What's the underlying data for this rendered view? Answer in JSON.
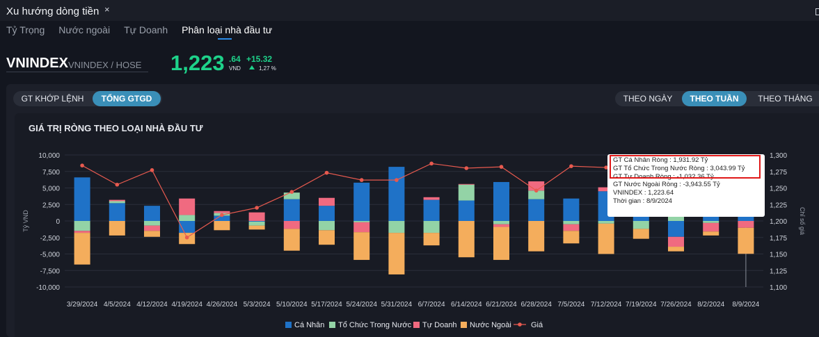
{
  "window": {
    "title": "Xu hướng dòng tiền",
    "close_icon": "×"
  },
  "tabs": [
    "Tỷ Trọng",
    "Nước ngoài",
    "Tự Doanh",
    "Phân loại nhà đầu tư"
  ],
  "active_tab": 3,
  "symbol": {
    "name": "VNINDEX",
    "exchange": "VNINDEX / HOSE",
    "price_main": "1,223",
    "price_decimal": ".64",
    "unit": "VND",
    "change": "+15.32",
    "change_pct": "1,27 %"
  },
  "value_toggle": [
    "GT KHỚP LỆNH",
    "TỔNG GTGD"
  ],
  "value_toggle_active": 1,
  "period_toggle": [
    "THEO NGÀY",
    "THEO TUẦN",
    "THEO THÁNG"
  ],
  "period_toggle_active": 1,
  "colors": {
    "ca_nhan": "#1f72c7",
    "to_chuc": "#93d3a6",
    "tu_doanh": "#f06a80",
    "nuoc_ngoai": "#f4ad5c",
    "gia": "#e85a4f",
    "price_up": "#1ed28a"
  },
  "chart_data": {
    "type": "bar",
    "title": "GIÁ TRỊ RÒNG THEO LOẠI NHÀ ĐẦU TƯ",
    "stacked": true,
    "ylabel": "Tỷ VND",
    "y2label": "Chỉ số giá",
    "ylim": [
      -10000,
      10000
    ],
    "y2lim": [
      1100,
      1300
    ],
    "yticks": [
      "10,000",
      "7,500",
      "5,000",
      "2,500",
      "0",
      "-2,500",
      "-5,000",
      "-7,500",
      "-10,000"
    ],
    "y2ticks": [
      "1,300",
      "1,275",
      "1,250",
      "1,225",
      "1,200",
      "1,175",
      "1,150",
      "1,125",
      "1,100"
    ],
    "categories": [
      "3/29/2024",
      "4/5/2024",
      "4/12/2024",
      "4/19/2024",
      "4/26/2024",
      "5/3/2024",
      "5/10/2024",
      "5/17/2024",
      "5/24/2024",
      "5/31/2024",
      "6/7/2024",
      "6/14/2024",
      "6/21/2024",
      "6/28/2024",
      "7/5/2024",
      "7/12/2024",
      "7/19/2024",
      "7/26/2024",
      "8/2/2024",
      "8/9/2024"
    ],
    "series": [
      {
        "name": "Cá Nhân",
        "values": [
          6600,
          2700,
          2300,
          -1800,
          800,
          -100,
          3300,
          2300,
          5800,
          8200,
          3200,
          3100,
          5900,
          3300,
          3400,
          4500,
          2000,
          -2400,
          1400,
          1931.92
        ]
      },
      {
        "name": "Tổ Chức Trong Nước",
        "values": [
          -1500,
          300,
          -700,
          900,
          400,
          -600,
          1000,
          -1400,
          -200,
          -1800,
          -1800,
          2400,
          -500,
          1300,
          -500,
          -400,
          -1200,
          1400,
          -300,
          3043.99
        ]
      },
      {
        "name": "Tự Doanh",
        "values": [
          -300,
          200,
          -800,
          2500,
          300,
          1300,
          -1200,
          1200,
          -1500,
          0,
          400,
          100,
          -400,
          1400,
          -1000,
          600,
          500,
          -1500,
          -1300,
          -1032.36
        ]
      },
      {
        "name": "Nước Ngoài",
        "values": [
          -4800,
          -2200,
          -900,
          -1700,
          -1400,
          -600,
          -3300,
          -2200,
          -4200,
          -6300,
          -1900,
          -5500,
          -5000,
          -4600,
          -1900,
          -4600,
          -1500,
          -700,
          -600,
          -3943.55
        ]
      }
    ],
    "price": {
      "name": "Giá",
      "values": [
        1284,
        1255,
        1277,
        1175,
        1209,
        1220,
        1244,
        1273,
        1262,
        1262,
        1287,
        1280,
        1282,
        1246,
        1283,
        1281,
        1268,
        1242,
        1236,
        1223.64
      ]
    },
    "legend": [
      "Cá Nhân",
      "Tổ Chức Trong Nước",
      "Tự Doanh",
      "Nước Ngoài",
      "Giá"
    ],
    "legend_position": "bottom",
    "grid": true
  },
  "tooltip": {
    "lines": [
      "GT Cá Nhân Ròng  : 1,931.92 Tỷ",
      "GT Tổ Chức Trong Nước Ròng : 3,043.99 Tỷ",
      "GT Tự Doanh Ròng : -1,032.36 Tỷ",
      "GT Nước Ngoài Ròng : -3,943.55 Tỷ",
      "VNINDEX : 1,223.64",
      "Thời gian : 8/9/2024"
    ]
  }
}
